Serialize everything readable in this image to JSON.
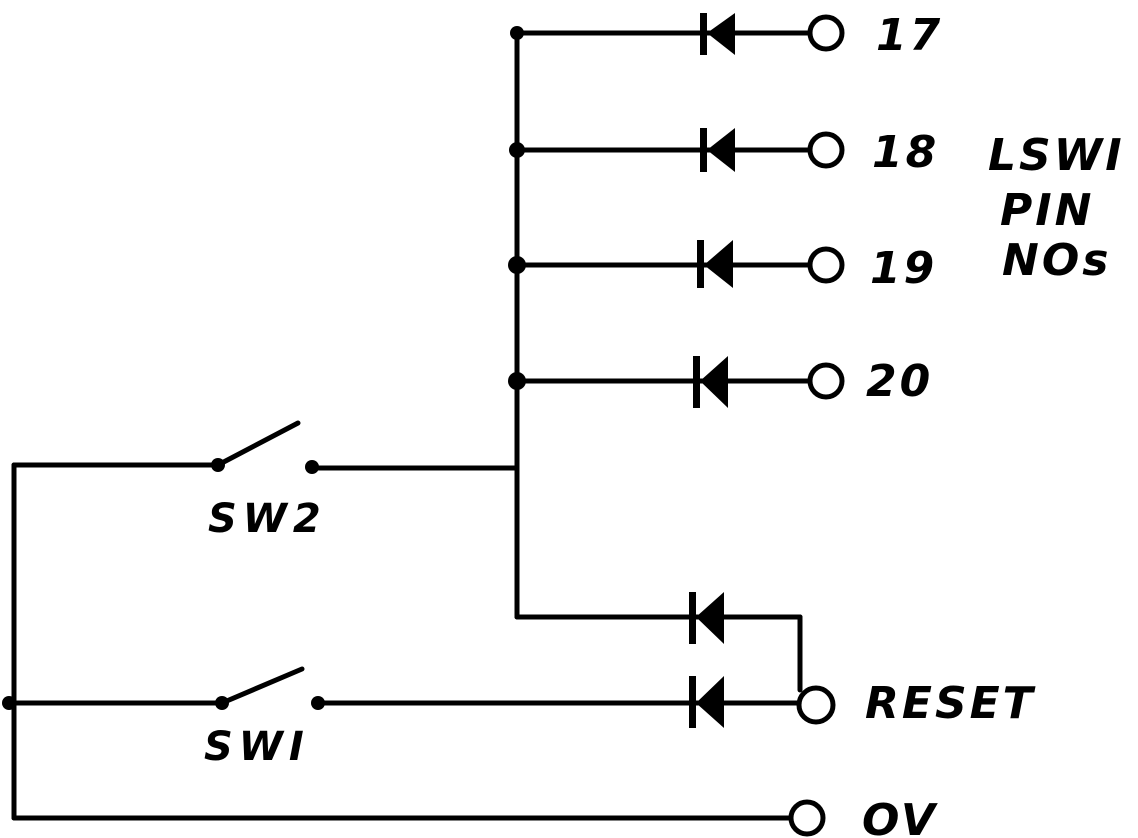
{
  "diagram": {
    "pins": [
      "17",
      "18",
      "19",
      "20"
    ],
    "pin_group_label": [
      "LSWI",
      "PIN",
      "NOs"
    ],
    "switches": [
      "SW2",
      "SWI"
    ],
    "reset_label": "RESET",
    "ground_label": "OV"
  }
}
